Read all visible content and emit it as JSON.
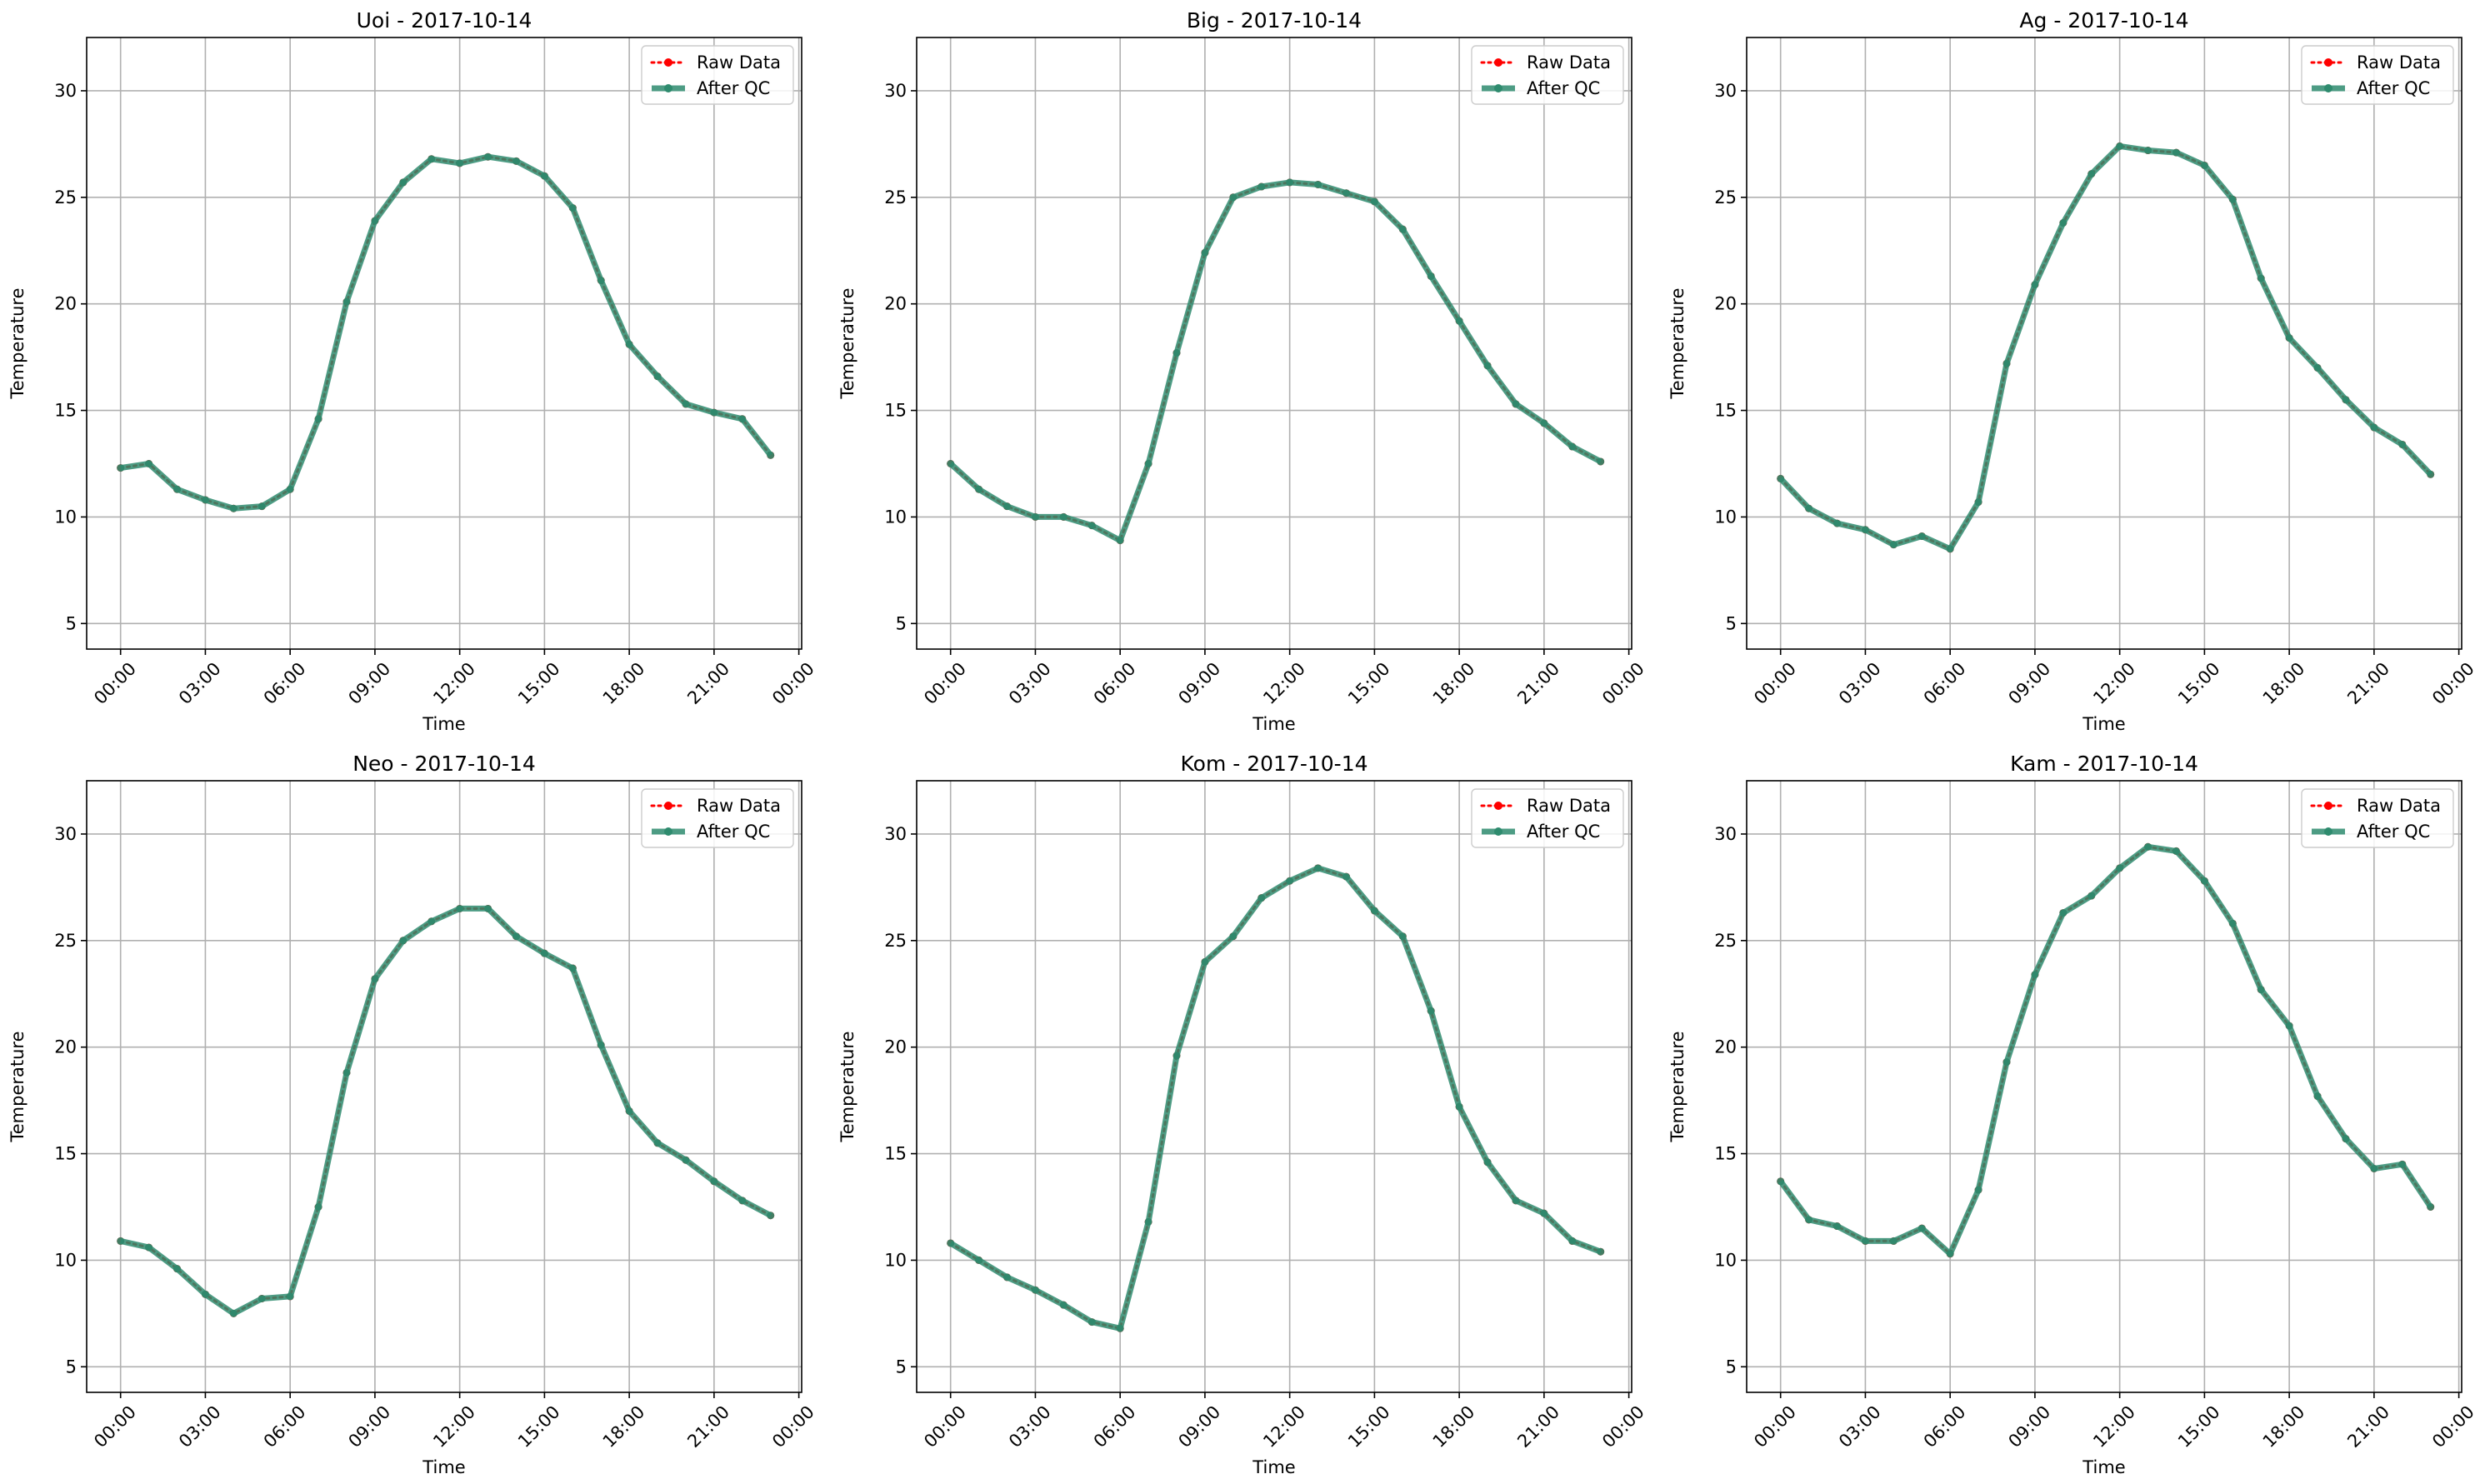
{
  "colors": {
    "raw": "#ff0000",
    "qc": "#2e8b6e",
    "grid": "#b0b0b0",
    "axis": "#000000"
  },
  "legend": {
    "raw_label": "Raw Data",
    "qc_label": "After QC"
  },
  "chart_data": [
    {
      "type": "line",
      "title": "Uoi - 2017-10-14",
      "xlabel": "Time",
      "ylabel": "Temperature",
      "x_ticks": [
        "00:00",
        "03:00",
        "06:00",
        "09:00",
        "12:00",
        "15:00",
        "18:00",
        "21:00",
        "00:00"
      ],
      "y_ticks": [
        5,
        10,
        15,
        20,
        25,
        30
      ],
      "ylim": [
        3.8,
        32.5
      ],
      "xlim_hours": [
        -1.2,
        24.1
      ],
      "grid": true,
      "legend_position": "top-right",
      "x_hours": [
        0,
        1,
        2,
        3,
        4,
        5,
        6,
        7,
        8,
        9,
        10,
        11,
        12,
        13,
        14,
        15,
        16,
        17,
        18,
        19,
        20,
        21,
        22,
        23
      ],
      "series": [
        {
          "name": "Raw Data",
          "values": [
            12.3,
            12.5,
            11.3,
            10.8,
            10.4,
            10.5,
            11.3,
            14.6,
            20.1,
            23.9,
            25.7,
            26.8,
            26.6,
            26.9,
            26.7,
            26.0,
            24.5,
            21.1,
            18.1,
            16.6,
            15.3,
            14.9,
            14.6,
            12.9
          ]
        },
        {
          "name": "After QC",
          "values": [
            12.3,
            12.5,
            11.3,
            10.8,
            10.4,
            10.5,
            11.3,
            14.6,
            20.1,
            23.9,
            25.7,
            26.8,
            26.6,
            26.9,
            26.7,
            26.0,
            24.5,
            21.1,
            18.1,
            16.6,
            15.3,
            14.9,
            14.6,
            12.9
          ]
        }
      ]
    },
    {
      "type": "line",
      "title": "Big - 2017-10-14",
      "xlabel": "Time",
      "ylabel": "Temperature",
      "x_ticks": [
        "00:00",
        "03:00",
        "06:00",
        "09:00",
        "12:00",
        "15:00",
        "18:00",
        "21:00",
        "00:00"
      ],
      "y_ticks": [
        5,
        10,
        15,
        20,
        25,
        30
      ],
      "ylim": [
        3.8,
        32.5
      ],
      "xlim_hours": [
        -1.2,
        24.1
      ],
      "grid": true,
      "legend_position": "top-right",
      "x_hours": [
        0,
        1,
        2,
        3,
        4,
        5,
        6,
        7,
        8,
        9,
        10,
        11,
        12,
        13,
        14,
        15,
        16,
        17,
        18,
        19,
        20,
        21,
        22,
        23
      ],
      "series": [
        {
          "name": "Raw Data",
          "values": [
            12.5,
            11.3,
            10.5,
            10.0,
            10.0,
            9.6,
            8.9,
            12.5,
            17.7,
            22.4,
            25.0,
            25.5,
            25.7,
            25.6,
            25.2,
            24.8,
            23.5,
            21.3,
            19.2,
            17.1,
            15.3,
            14.4,
            13.3,
            12.6
          ]
        },
        {
          "name": "After QC",
          "values": [
            12.5,
            11.3,
            10.5,
            10.0,
            10.0,
            9.6,
            8.9,
            12.5,
            17.7,
            22.4,
            25.0,
            25.5,
            25.7,
            25.6,
            25.2,
            24.8,
            23.5,
            21.3,
            19.2,
            17.1,
            15.3,
            14.4,
            13.3,
            12.6
          ]
        }
      ]
    },
    {
      "type": "line",
      "title": "Ag - 2017-10-14",
      "xlabel": "Time",
      "ylabel": "Temperature",
      "x_ticks": [
        "00:00",
        "03:00",
        "06:00",
        "09:00",
        "12:00",
        "15:00",
        "18:00",
        "21:00",
        "00:00"
      ],
      "y_ticks": [
        5,
        10,
        15,
        20,
        25,
        30
      ],
      "ylim": [
        3.8,
        32.5
      ],
      "xlim_hours": [
        -1.2,
        24.1
      ],
      "grid": true,
      "legend_position": "top-right",
      "x_hours": [
        0,
        1,
        2,
        3,
        4,
        5,
        6,
        7,
        8,
        9,
        10,
        11,
        12,
        13,
        14,
        15,
        16,
        17,
        18,
        19,
        20,
        21,
        22,
        23
      ],
      "series": [
        {
          "name": "Raw Data",
          "values": [
            11.8,
            10.4,
            9.7,
            9.4,
            8.7,
            9.1,
            8.5,
            10.7,
            17.2,
            20.9,
            23.8,
            26.1,
            27.4,
            27.2,
            27.1,
            26.5,
            24.9,
            21.2,
            18.4,
            17.0,
            15.5,
            14.2,
            13.4,
            12.0
          ]
        },
        {
          "name": "After QC",
          "values": [
            11.8,
            10.4,
            9.7,
            9.4,
            8.7,
            9.1,
            8.5,
            10.7,
            17.2,
            20.9,
            23.8,
            26.1,
            27.4,
            27.2,
            27.1,
            26.5,
            24.9,
            21.2,
            18.4,
            17.0,
            15.5,
            14.2,
            13.4,
            12.0
          ]
        }
      ]
    },
    {
      "type": "line",
      "title": "Neo - 2017-10-14",
      "xlabel": "Time",
      "ylabel": "Temperature",
      "x_ticks": [
        "00:00",
        "03:00",
        "06:00",
        "09:00",
        "12:00",
        "15:00",
        "18:00",
        "21:00",
        "00:00"
      ],
      "y_ticks": [
        5,
        10,
        15,
        20,
        25,
        30
      ],
      "ylim": [
        3.8,
        32.5
      ],
      "xlim_hours": [
        -1.2,
        24.1
      ],
      "grid": true,
      "legend_position": "top-right",
      "x_hours": [
        0,
        1,
        2,
        3,
        4,
        5,
        6,
        7,
        8,
        9,
        10,
        11,
        12,
        13,
        14,
        15,
        16,
        17,
        18,
        19,
        20,
        21,
        22,
        23
      ],
      "series": [
        {
          "name": "Raw Data",
          "values": [
            10.9,
            10.6,
            9.6,
            8.4,
            7.5,
            8.2,
            8.3,
            12.5,
            18.8,
            23.2,
            25.0,
            25.9,
            26.5,
            26.5,
            25.2,
            24.4,
            23.7,
            20.1,
            17.0,
            15.5,
            14.7,
            13.7,
            12.8,
            12.1
          ]
        },
        {
          "name": "After QC",
          "values": [
            10.9,
            10.6,
            9.6,
            8.4,
            7.5,
            8.2,
            8.3,
            12.5,
            18.8,
            23.2,
            25.0,
            25.9,
            26.5,
            26.5,
            25.2,
            24.4,
            23.7,
            20.1,
            17.0,
            15.5,
            14.7,
            13.7,
            12.8,
            12.1
          ]
        }
      ]
    },
    {
      "type": "line",
      "title": "Kom - 2017-10-14",
      "xlabel": "Time",
      "ylabel": "Temperature",
      "x_ticks": [
        "00:00",
        "03:00",
        "06:00",
        "09:00",
        "12:00",
        "15:00",
        "18:00",
        "21:00",
        "00:00"
      ],
      "y_ticks": [
        5,
        10,
        15,
        20,
        25,
        30
      ],
      "ylim": [
        3.8,
        32.5
      ],
      "xlim_hours": [
        -1.2,
        24.1
      ],
      "grid": true,
      "legend_position": "top-right",
      "x_hours": [
        0,
        1,
        2,
        3,
        4,
        5,
        6,
        7,
        8,
        9,
        10,
        11,
        12,
        13,
        14,
        15,
        16,
        17,
        18,
        19,
        20,
        21,
        22,
        23
      ],
      "series": [
        {
          "name": "Raw Data",
          "values": [
            10.8,
            10.0,
            9.2,
            8.6,
            7.9,
            7.1,
            6.8,
            11.8,
            19.6,
            24.0,
            25.2,
            27.0,
            27.8,
            28.4,
            28.0,
            26.4,
            25.2,
            21.7,
            17.2,
            14.6,
            12.8,
            12.2,
            10.9,
            10.4
          ]
        },
        {
          "name": "After QC",
          "values": [
            10.8,
            10.0,
            9.2,
            8.6,
            7.9,
            7.1,
            6.8,
            11.8,
            19.6,
            24.0,
            25.2,
            27.0,
            27.8,
            28.4,
            28.0,
            26.4,
            25.2,
            21.7,
            17.2,
            14.6,
            12.8,
            12.2,
            10.9,
            10.4
          ]
        }
      ]
    },
    {
      "type": "line",
      "title": "Kam - 2017-10-14",
      "xlabel": "Time",
      "ylabel": "Temperature",
      "x_ticks": [
        "00:00",
        "03:00",
        "06:00",
        "09:00",
        "12:00",
        "15:00",
        "18:00",
        "21:00",
        "00:00"
      ],
      "y_ticks": [
        5,
        10,
        15,
        20,
        25,
        30
      ],
      "ylim": [
        3.8,
        32.5
      ],
      "xlim_hours": [
        -1.2,
        24.1
      ],
      "grid": true,
      "legend_position": "top-right",
      "x_hours": [
        0,
        1,
        2,
        3,
        4,
        5,
        6,
        7,
        8,
        9,
        10,
        11,
        12,
        13,
        14,
        15,
        16,
        17,
        18,
        19,
        20,
        21,
        22,
        23
      ],
      "series": [
        {
          "name": "Raw Data",
          "values": [
            13.7,
            11.9,
            11.6,
            10.9,
            10.9,
            11.5,
            10.3,
            13.3,
            19.3,
            23.4,
            26.3,
            27.1,
            28.4,
            29.4,
            29.2,
            27.8,
            25.8,
            22.7,
            21.0,
            17.7,
            15.7,
            14.3,
            14.5,
            12.5
          ]
        },
        {
          "name": "After QC",
          "values": [
            13.7,
            11.9,
            11.6,
            10.9,
            10.9,
            11.5,
            10.3,
            13.3,
            19.3,
            23.4,
            26.3,
            27.1,
            28.4,
            29.4,
            29.2,
            27.8,
            25.8,
            22.7,
            21.0,
            17.7,
            15.7,
            14.3,
            14.5,
            12.5
          ]
        }
      ]
    }
  ]
}
